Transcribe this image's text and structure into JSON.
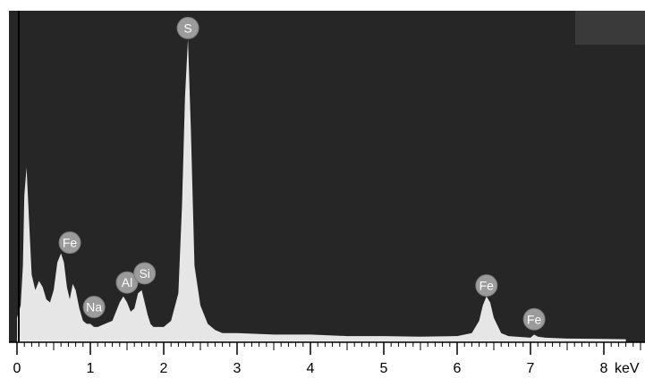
{
  "chart_data": {
    "type": "area",
    "title": "",
    "xlabel": "",
    "ylabel": "",
    "x_unit": "keV",
    "xlim": [
      0,
      8.3
    ],
    "ylim": [
      0,
      100
    ],
    "x_ticks": [
      {
        "value": 0,
        "label": "0"
      },
      {
        "value": 1,
        "label": "1"
      },
      {
        "value": 2,
        "label": "2"
      },
      {
        "value": 3,
        "label": "3"
      },
      {
        "value": 4,
        "label": "4"
      },
      {
        "value": 5,
        "label": "5"
      },
      {
        "value": 6,
        "label": "6"
      },
      {
        "value": 7,
        "label": "7"
      },
      {
        "value": 8,
        "label": "8"
      }
    ],
    "grid": false,
    "series": [
      {
        "x": [
          0.0,
          0.05,
          0.08,
          0.1,
          0.13,
          0.16,
          0.2,
          0.25,
          0.3,
          0.35,
          0.4,
          0.45,
          0.5,
          0.55,
          0.6,
          0.64,
          0.68,
          0.72,
          0.76,
          0.8,
          0.85,
          0.9,
          0.95,
          1.0,
          1.05,
          1.1,
          1.2,
          1.3,
          1.4,
          1.45,
          1.5,
          1.55,
          1.6,
          1.65,
          1.7,
          1.74,
          1.78,
          1.82,
          1.86,
          1.9,
          2.0,
          2.1,
          2.2,
          2.25,
          2.29,
          2.33,
          2.37,
          2.42,
          2.5,
          2.6,
          2.7,
          2.8,
          3.0,
          3.5,
          4.0,
          4.5,
          5.0,
          5.5,
          6.0,
          6.2,
          6.3,
          6.35,
          6.4,
          6.45,
          6.5,
          6.6,
          6.7,
          7.0,
          7.05,
          7.1,
          7.2,
          7.5,
          8.0,
          8.3
        ],
        "y": [
          8,
          12,
          25,
          48,
          57,
          42,
          22,
          17,
          20,
          18,
          14,
          13,
          17,
          26,
          29,
          26,
          18,
          14,
          19,
          17,
          11,
          7,
          6,
          6,
          5,
          5,
          6,
          7,
          13,
          15,
          13,
          10,
          11,
          16,
          17,
          13,
          9,
          6,
          5,
          5,
          5,
          7,
          16,
          45,
          80,
          99,
          70,
          25,
          12,
          6,
          4,
          3,
          3,
          2.5,
          2.5,
          2,
          2,
          1.8,
          2,
          3,
          7,
          12,
          15,
          13,
          8,
          3,
          2,
          1.5,
          2.5,
          1.8,
          1.5,
          1.2,
          1.1,
          1.0
        ]
      }
    ],
    "peak_labels": [
      {
        "text": "S",
        "x": 2.33,
        "y": 99
      },
      {
        "text": "Fe",
        "x": 0.72,
        "y": 29
      },
      {
        "text": "Na",
        "x": 1.05,
        "y": 8
      },
      {
        "text": "Al",
        "x": 1.5,
        "y": 16
      },
      {
        "text": "Si",
        "x": 1.74,
        "y": 19
      },
      {
        "text": "Fe",
        "x": 6.4,
        "y": 15
      },
      {
        "text": "Fe",
        "x": 7.05,
        "y": 4
      }
    ],
    "colors": {
      "plot_background": "#262626",
      "spectrum_fill": "#e6e6e6",
      "peak_marker": "#9b9b9b",
      "corner_box": "#3a3a3a"
    }
  }
}
